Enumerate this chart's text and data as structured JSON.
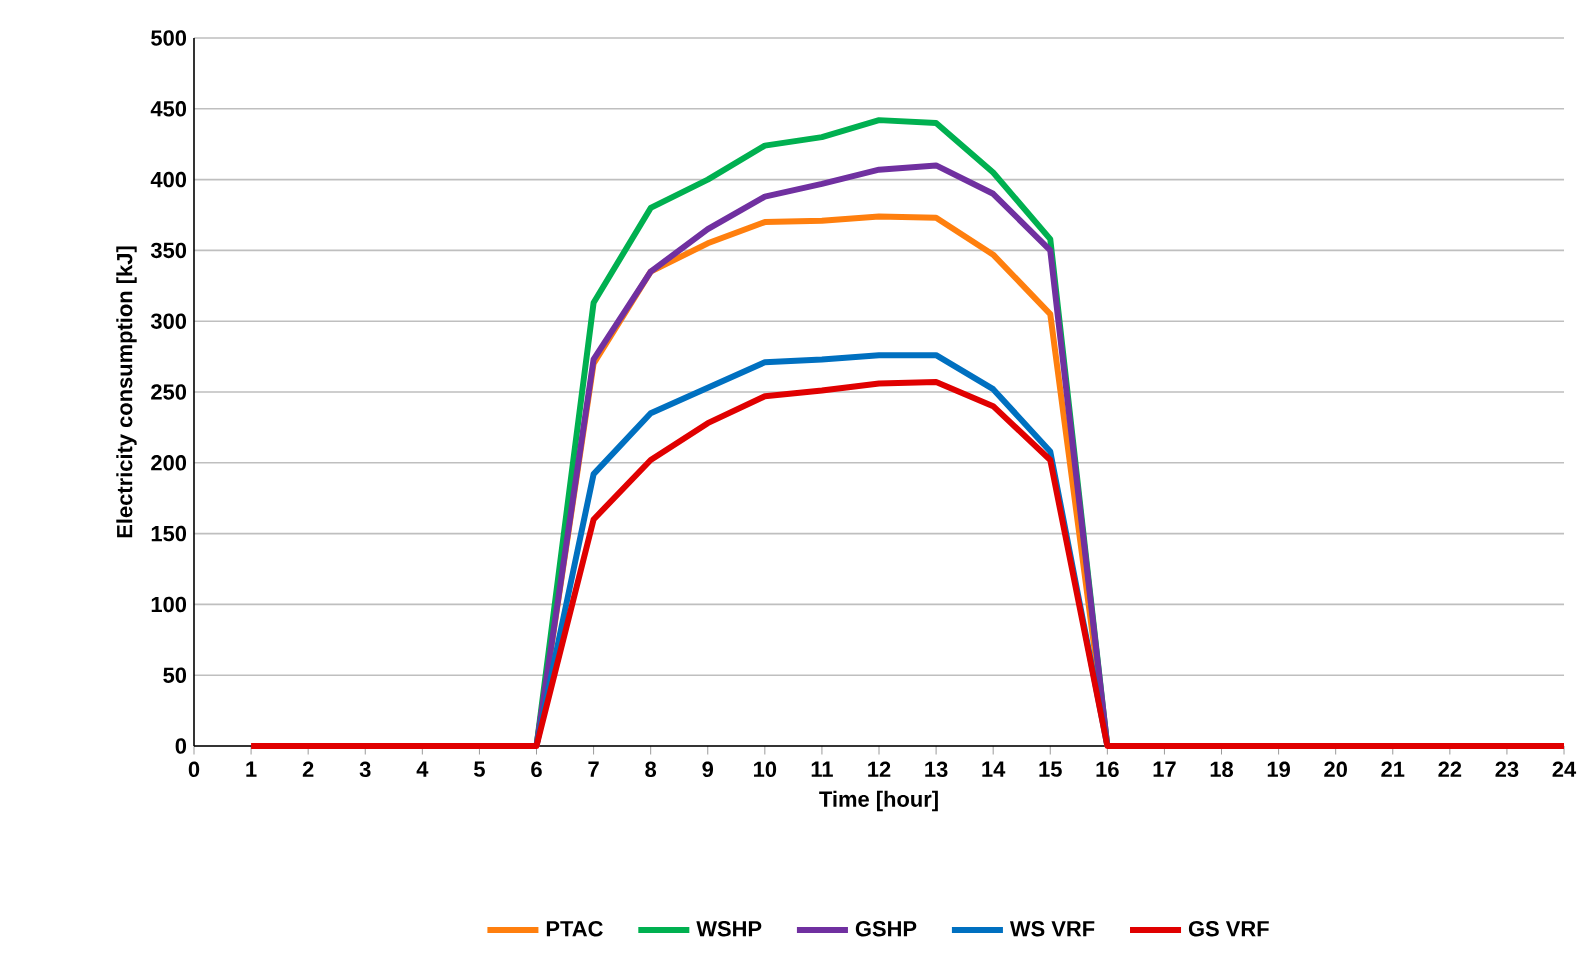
{
  "chart_data": {
    "type": "line",
    "xlabel": "Time [hour]",
    "ylabel": "Electricity consumption [kJ]",
    "x": [
      1,
      2,
      3,
      4,
      5,
      6,
      7,
      8,
      9,
      10,
      11,
      12,
      13,
      14,
      15,
      16,
      17,
      18,
      19,
      20,
      21,
      22,
      23,
      24
    ],
    "series": [
      {
        "name": "PTAC",
        "color": "#ff7f0e",
        "values": [
          null,
          null,
          null,
          null,
          null,
          0,
          270,
          335,
          355,
          370,
          371,
          374,
          373,
          347,
          305,
          0,
          null,
          null,
          null,
          null,
          null,
          null,
          null,
          null
        ]
      },
      {
        "name": "WSHP",
        "color": "#00b050",
        "values": [
          null,
          null,
          null,
          null,
          null,
          0,
          313,
          380,
          400,
          424,
          430,
          442,
          440,
          405,
          358,
          0,
          null,
          null,
          null,
          null,
          null,
          null,
          null,
          null
        ]
      },
      {
        "name": "GSHP",
        "color": "#7030a0",
        "values": [
          null,
          null,
          null,
          null,
          null,
          0,
          273,
          335,
          365,
          388,
          397,
          407,
          410,
          390,
          350,
          0,
          null,
          null,
          null,
          null,
          null,
          null,
          null,
          null
        ]
      },
      {
        "name": "WS VRF",
        "color": "#0070c0",
        "values": [
          null,
          null,
          null,
          null,
          null,
          0,
          192,
          235,
          253,
          271,
          273,
          276,
          276,
          252,
          208,
          0,
          null,
          null,
          null,
          null,
          null,
          null,
          null,
          null
        ]
      },
      {
        "name": "GS VRF",
        "color": "#e00000",
        "values": [
          0,
          0,
          0,
          0,
          0,
          0,
          160,
          202,
          228,
          247,
          251,
          256,
          257,
          240,
          202,
          0,
          0,
          0,
          0,
          0,
          0,
          0,
          0,
          0
        ]
      }
    ],
    "xlim": [
      0,
      24
    ],
    "xticks": [
      0,
      1,
      2,
      3,
      4,
      5,
      6,
      7,
      8,
      9,
      10,
      11,
      12,
      13,
      14,
      15,
      16,
      17,
      18,
      19,
      20,
      21,
      22,
      23,
      24
    ],
    "ylim": [
      0,
      500
    ],
    "yticks": [
      0,
      50,
      100,
      150,
      200,
      250,
      300,
      350,
      400,
      450,
      500
    ],
    "grid": "y",
    "legend": "bottom",
    "marker": "none",
    "line_style": "solid"
  }
}
